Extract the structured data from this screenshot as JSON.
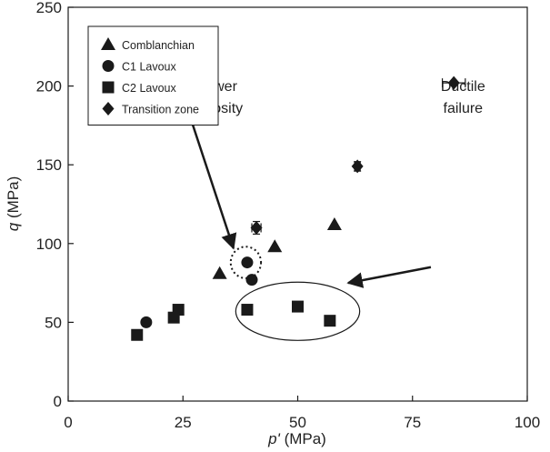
{
  "chart_data": {
    "type": "scatter",
    "xlabel": {
      "italic": "p'",
      "rest": " (MPa)"
    },
    "ylabel": {
      "italic": "q",
      "rest": " (MPa)"
    },
    "xlim": [
      0,
      100
    ],
    "ylim": [
      0,
      250
    ],
    "xticks": [
      0,
      25,
      50,
      75,
      100
    ],
    "yticks": [
      0,
      50,
      100,
      150,
      200,
      250
    ],
    "grid": false,
    "legend_position": "top-left",
    "marker_color": "#1a1a1a",
    "series": [
      {
        "name": "Comblanchian",
        "marker": "triangle",
        "points": [
          [
            33,
            81
          ],
          [
            45,
            98
          ],
          [
            58,
            112
          ]
        ]
      },
      {
        "name": "C1 Lavoux",
        "marker": "circle",
        "points": [
          [
            17,
            50
          ],
          [
            39,
            88
          ],
          [
            40,
            77
          ]
        ]
      },
      {
        "name": "C2 Lavoux",
        "marker": "square",
        "points": [
          [
            15,
            42
          ],
          [
            23,
            53
          ],
          [
            24,
            58
          ],
          [
            39,
            58
          ],
          [
            50,
            60
          ],
          [
            57,
            51
          ]
        ]
      },
      {
        "name": "Transition zone",
        "marker": "diamond",
        "points": [
          [
            41,
            110
          ],
          [
            63,
            149
          ],
          [
            84,
            202
          ]
        ],
        "xerr": [
          1.0,
          0.6,
          2.5
        ],
        "yerr": [
          4.0,
          3.0,
          0
        ]
      }
    ],
    "annotations": [
      {
        "id": "lower-porosity",
        "lines": [
          "Lower",
          "porosity"
        ],
        "text_at": [
          32.5,
          197
        ],
        "arrow_from": [
          26.5,
          181
        ],
        "arrow_to": [
          36,
          97
        ],
        "shape": "dotted-circle",
        "center": [
          38.7,
          88
        ],
        "radius": [
          3.3,
          10
        ]
      },
      {
        "id": "ductile-failure",
        "lines": [
          "Ductile",
          "failure"
        ],
        "text_at": [
          86,
          197
        ],
        "arrow_from": [
          79,
          85
        ],
        "arrow_to": [
          61,
          75
        ],
        "shape": "ellipse",
        "center": [
          50,
          57
        ],
        "radius": [
          13.5,
          18.5
        ]
      }
    ]
  }
}
